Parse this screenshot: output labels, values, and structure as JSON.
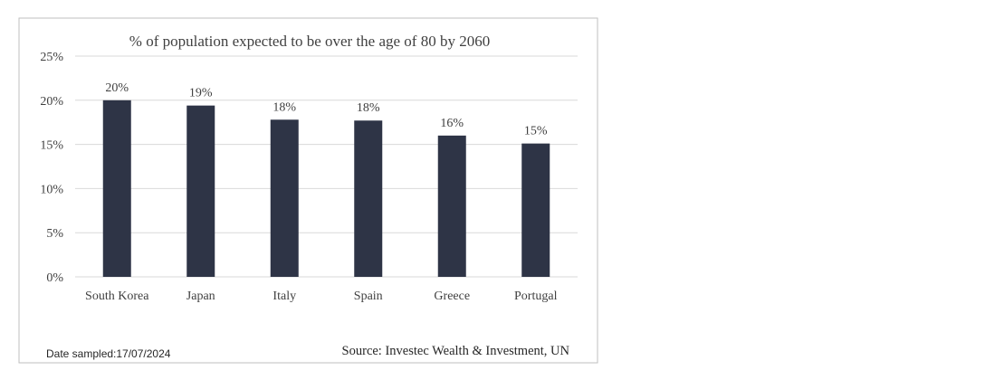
{
  "chart_data": {
    "type": "bar",
    "title": "% of population expected to be over the age of 80  by 2060",
    "categories": [
      "South Korea",
      "Japan",
      "Italy",
      "Spain",
      "Greece",
      "Portugal"
    ],
    "values": [
      20,
      19.4,
      17.8,
      17.7,
      16,
      15.1
    ],
    "data_labels": [
      "20%",
      "19%",
      "18%",
      "18%",
      "16%",
      "15%"
    ],
    "yticks": [
      "0%",
      "5%",
      "10%",
      "15%",
      "20%",
      "25%"
    ],
    "ytick_values": [
      0,
      5,
      10,
      15,
      20,
      25
    ],
    "ylim": [
      0,
      25
    ],
    "xlabel": "",
    "ylabel": "",
    "grid": true,
    "legend": "none"
  },
  "footer": {
    "date_sampled": "Date sampled:17/07/2024",
    "source": "Source: Investec Wealth & Investment, UN"
  },
  "colors": {
    "bar": "#2e3446",
    "grid": "#d9d9d9",
    "border": "#bfbfbf",
    "text": "#404040"
  }
}
